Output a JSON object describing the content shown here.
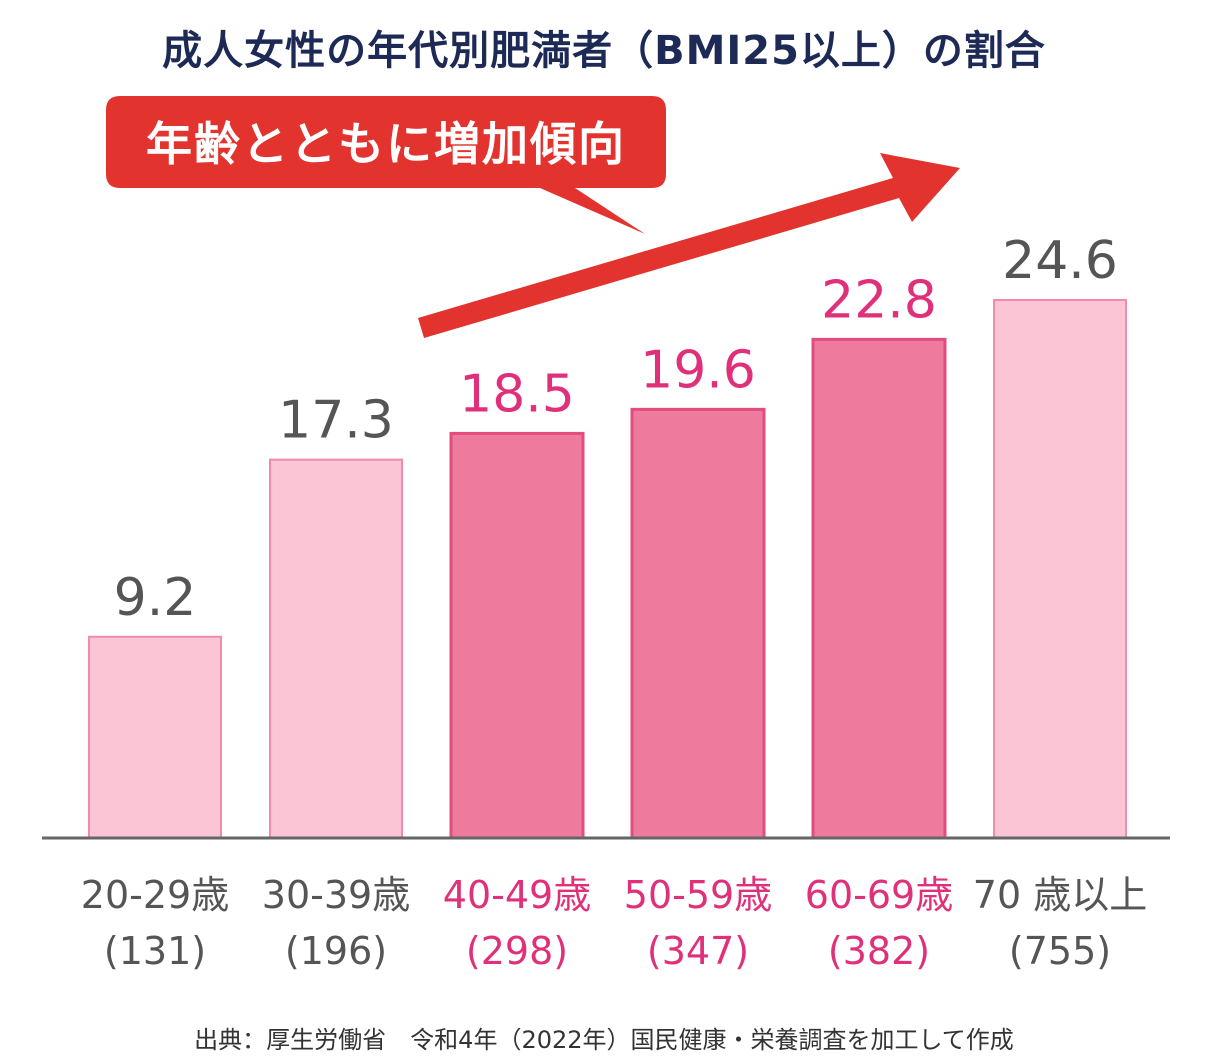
{
  "chart_data": {
    "type": "bar",
    "title": "成人女性の年代別肥満者（BMI25以上）の割合",
    "annotation": "年齢とともに増加傾向",
    "categories": [
      "20-29歳",
      "30-39歳",
      "40-49歳",
      "50-59歳",
      "60-69歳",
      "70 歳以上"
    ],
    "sample_sizes": [
      "(131)",
      "(196)",
      "(298)",
      "(347)",
      "(382)",
      "(755)"
    ],
    "values": [
      9.2,
      17.3,
      18.5,
      19.6,
      22.8,
      24.6
    ],
    "highlighted": [
      false,
      false,
      true,
      true,
      true,
      false
    ],
    "ylim": [
      0,
      24.6
    ],
    "grid": false,
    "xlabel": "",
    "ylabel": ""
  },
  "source": "出典：厚生労働省　令和4年（2022年）国民健康・栄養調査を加工して作成",
  "colors": {
    "bar_light_fill": "#fbc5d6",
    "bar_light_stroke": "#f28aab",
    "bar_dark_fill": "#ee7a9e",
    "bar_dark_stroke": "#e24d7e",
    "label_gray": "#555555",
    "label_pink": "#e0307a",
    "arrow_red": "#e2332e",
    "title_navy": "#1c2a55",
    "axis": "#666666"
  }
}
